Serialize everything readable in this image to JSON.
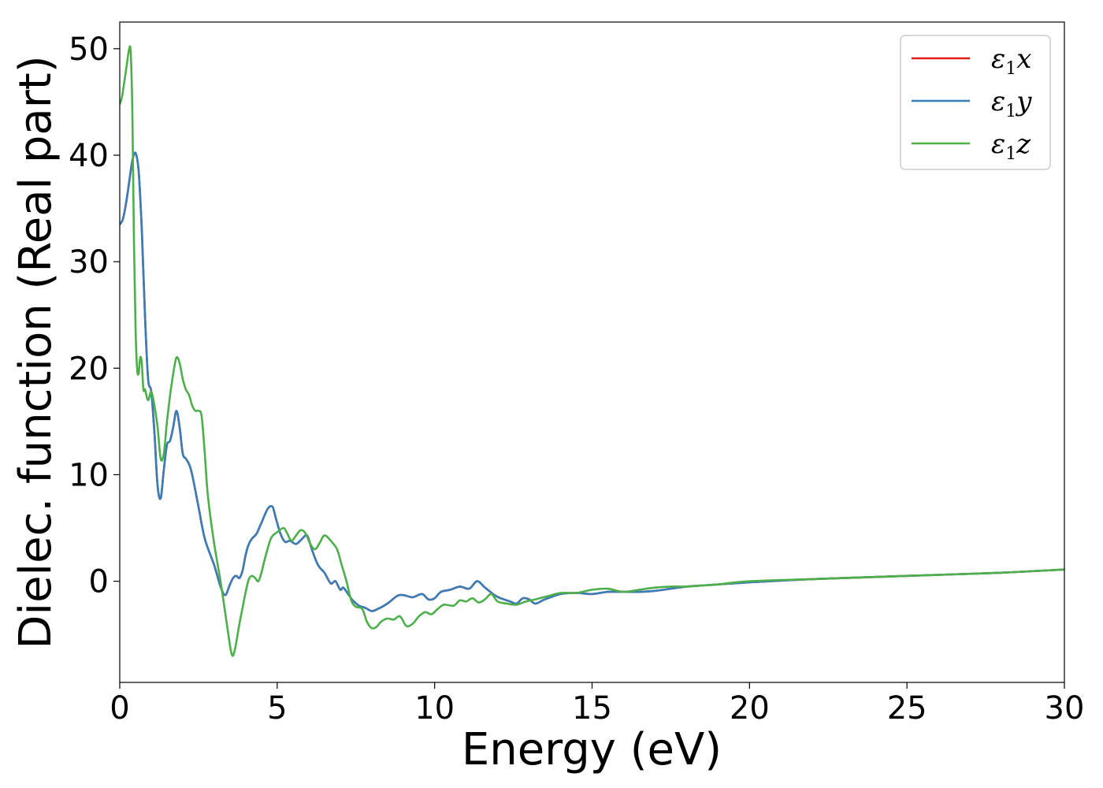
{
  "chart_data": {
    "type": "line",
    "xlabel": "Energy (eV)",
    "ylabel": "Dielec. function (Real part)",
    "xlim": [
      0,
      30
    ],
    "ylim": [
      -9.5,
      52.5
    ],
    "xticks": [
      0,
      5,
      10,
      15,
      20,
      25,
      30
    ],
    "yticks": [
      0,
      10,
      20,
      30,
      40,
      50
    ],
    "grid": false,
    "legend_position": "top-right",
    "series": [
      {
        "name": "ε1x",
        "symbol": "ε",
        "sub": "1",
        "tail": "x",
        "color": "#e41a1c",
        "x": [
          0,
          0.1,
          0.2,
          0.3,
          0.4,
          0.5,
          0.6,
          0.7,
          0.8,
          0.9,
          1.0,
          1.1,
          1.2,
          1.3,
          1.4,
          1.5,
          1.6,
          1.7,
          1.8,
          1.9,
          2.0,
          2.1,
          2.2,
          2.3,
          2.5,
          2.7,
          3.0,
          3.2,
          3.35,
          3.5,
          3.6,
          3.7,
          3.8,
          3.9,
          4.0,
          4.1,
          4.2,
          4.35,
          4.5,
          4.7,
          4.85,
          4.95,
          5.1,
          5.25,
          5.4,
          5.6,
          5.8,
          5.95,
          6.1,
          6.3,
          6.5,
          6.7,
          6.85,
          7.0,
          7.1,
          7.25,
          7.4,
          7.6,
          7.8,
          8.0,
          8.2,
          8.5,
          8.8,
          9.0,
          9.3,
          9.6,
          9.8,
          10.0,
          10.2,
          10.5,
          10.8,
          11.1,
          11.35,
          11.6,
          11.9,
          12.1,
          12.4,
          12.6,
          12.8,
          13.0,
          13.2,
          13.5,
          14.0,
          14.5,
          15.0,
          15.5,
          16.0,
          16.5,
          17.0,
          17.5,
          18.0,
          18.5,
          19.0,
          20.0,
          22.0,
          24.0,
          26.0,
          28.0,
          30.0
        ],
        "y": [
          33.5,
          34.0,
          35.5,
          37.5,
          39.5,
          40.2,
          38.5,
          33.0,
          25.0,
          19.0,
          17.8,
          14.0,
          9.0,
          7.8,
          10.5,
          12.8,
          13.2,
          14.5,
          16.0,
          14.5,
          12.0,
          11.5,
          11.0,
          10.0,
          7.0,
          4.0,
          1.5,
          -0.5,
          -1.3,
          -0.3,
          0.3,
          0.5,
          0.3,
          1.0,
          2.5,
          3.5,
          4.0,
          4.5,
          5.5,
          6.8,
          7.0,
          6.0,
          4.5,
          3.7,
          3.8,
          3.5,
          4.0,
          4.3,
          3.0,
          1.5,
          0.8,
          -0.2,
          0.0,
          -0.8,
          -0.6,
          -1.2,
          -1.8,
          -2.3,
          -2.5,
          -2.8,
          -2.6,
          -2.1,
          -1.4,
          -1.3,
          -1.5,
          -1.2,
          -1.7,
          -1.6,
          -1.0,
          -0.8,
          -0.5,
          -0.7,
          0.0,
          -0.6,
          -1.3,
          -1.6,
          -1.9,
          -2.1,
          -1.6,
          -1.7,
          -2.1,
          -1.7,
          -1.2,
          -1.1,
          -1.2,
          -1.0,
          -1.0,
          -1.0,
          -0.9,
          -0.7,
          -0.5,
          -0.4,
          -0.3,
          -0.1,
          0.2,
          0.4,
          0.6,
          0.8,
          1.1
        ]
      },
      {
        "name": "ε1y",
        "symbol": "ε",
        "sub": "1",
        "tail": "y",
        "color": "#377eb8",
        "x": [
          0,
          0.1,
          0.2,
          0.3,
          0.4,
          0.5,
          0.6,
          0.7,
          0.8,
          0.9,
          1.0,
          1.1,
          1.2,
          1.3,
          1.4,
          1.5,
          1.6,
          1.7,
          1.8,
          1.9,
          2.0,
          2.1,
          2.2,
          2.3,
          2.5,
          2.7,
          3.0,
          3.2,
          3.35,
          3.5,
          3.6,
          3.7,
          3.8,
          3.9,
          4.0,
          4.1,
          4.2,
          4.35,
          4.5,
          4.7,
          4.85,
          4.95,
          5.1,
          5.25,
          5.4,
          5.6,
          5.8,
          5.95,
          6.1,
          6.3,
          6.5,
          6.7,
          6.85,
          7.0,
          7.1,
          7.25,
          7.4,
          7.6,
          7.8,
          8.0,
          8.2,
          8.5,
          8.8,
          9.0,
          9.3,
          9.6,
          9.8,
          10.0,
          10.2,
          10.5,
          10.8,
          11.1,
          11.35,
          11.6,
          11.9,
          12.1,
          12.4,
          12.6,
          12.8,
          13.0,
          13.2,
          13.5,
          14.0,
          14.5,
          15.0,
          15.5,
          16.0,
          16.5,
          17.0,
          17.5,
          18.0,
          18.5,
          19.0,
          20.0,
          22.0,
          24.0,
          26.0,
          28.0,
          30.0
        ],
        "y": [
          33.5,
          34.0,
          35.5,
          37.5,
          39.5,
          40.2,
          38.5,
          33.0,
          25.0,
          19.0,
          17.8,
          14.0,
          9.0,
          7.8,
          10.5,
          12.8,
          13.2,
          14.5,
          16.0,
          14.5,
          12.0,
          11.5,
          11.0,
          10.0,
          7.0,
          4.0,
          1.5,
          -0.5,
          -1.3,
          -0.3,
          0.3,
          0.5,
          0.3,
          1.0,
          2.5,
          3.5,
          4.0,
          4.5,
          5.5,
          6.8,
          7.0,
          6.0,
          4.5,
          3.7,
          3.8,
          3.5,
          4.0,
          4.3,
          3.0,
          1.5,
          0.8,
          -0.2,
          0.0,
          -0.8,
          -0.6,
          -1.2,
          -1.8,
          -2.3,
          -2.5,
          -2.8,
          -2.6,
          -2.1,
          -1.4,
          -1.3,
          -1.5,
          -1.2,
          -1.7,
          -1.6,
          -1.0,
          -0.8,
          -0.5,
          -0.7,
          0.0,
          -0.6,
          -1.3,
          -1.6,
          -1.9,
          -2.1,
          -1.6,
          -1.7,
          -2.1,
          -1.7,
          -1.2,
          -1.1,
          -1.2,
          -1.0,
          -1.0,
          -1.0,
          -0.9,
          -0.7,
          -0.5,
          -0.4,
          -0.3,
          -0.1,
          0.2,
          0.4,
          0.6,
          0.8,
          1.1
        ]
      },
      {
        "name": "ε1z",
        "symbol": "ε",
        "sub": "1",
        "tail": "z",
        "color": "#4daf4a",
        "x": [
          0,
          0.05,
          0.1,
          0.2,
          0.3,
          0.35,
          0.4,
          0.45,
          0.5,
          0.55,
          0.6,
          0.65,
          0.7,
          0.75,
          0.8,
          0.9,
          1.0,
          1.1,
          1.2,
          1.3,
          1.4,
          1.5,
          1.6,
          1.7,
          1.8,
          1.9,
          2.0,
          2.1,
          2.2,
          2.3,
          2.4,
          2.5,
          2.6,
          2.7,
          2.8,
          3.0,
          3.2,
          3.4,
          3.55,
          3.65,
          3.8,
          3.9,
          4.0,
          4.1,
          4.2,
          4.3,
          4.4,
          4.5,
          4.6,
          4.8,
          5.0,
          5.2,
          5.3,
          5.45,
          5.6,
          5.75,
          5.9,
          6.05,
          6.2,
          6.35,
          6.5,
          6.7,
          6.9,
          7.05,
          7.2,
          7.35,
          7.5,
          7.7,
          7.85,
          8.0,
          8.15,
          8.3,
          8.5,
          8.7,
          8.9,
          9.1,
          9.3,
          9.5,
          9.7,
          9.9,
          10.1,
          10.3,
          10.6,
          10.8,
          11.0,
          11.2,
          11.4,
          11.6,
          11.8,
          12.0,
          12.3,
          12.6,
          12.9,
          13.2,
          13.6,
          14.0,
          14.5,
          15.0,
          15.5,
          16.0,
          16.5,
          17.0,
          17.5,
          18.0,
          18.5,
          19.0,
          20.0,
          22.0,
          24.0,
          26.0,
          28.0,
          30.0
        ],
        "y": [
          44.8,
          45.2,
          46.0,
          48.0,
          50.0,
          49.5,
          44.0,
          32.0,
          24.0,
          20.0,
          19.5,
          21.0,
          20.5,
          18.0,
          18.0,
          17.0,
          17.8,
          16.5,
          14.5,
          11.5,
          12.0,
          15.0,
          17.5,
          19.5,
          21.0,
          20.5,
          19.0,
          18.0,
          17.5,
          16.5,
          16.0,
          16.0,
          15.5,
          12.0,
          8.0,
          3.5,
          0.0,
          -4.0,
          -6.8,
          -6.5,
          -4.0,
          -2.5,
          -1.0,
          0.2,
          0.5,
          0.3,
          0.0,
          0.8,
          2.0,
          4.0,
          4.6,
          5.0,
          4.6,
          3.8,
          4.3,
          4.8,
          4.5,
          3.5,
          3.0,
          3.6,
          4.3,
          3.8,
          3.0,
          1.5,
          0.0,
          -1.8,
          -2.4,
          -2.6,
          -3.8,
          -4.4,
          -4.3,
          -3.8,
          -3.5,
          -3.6,
          -3.3,
          -4.2,
          -4.0,
          -3.3,
          -2.9,
          -3.1,
          -2.6,
          -2.2,
          -2.3,
          -1.8,
          -1.9,
          -1.6,
          -2.0,
          -1.7,
          -1.2,
          -1.9,
          -2.1,
          -2.2,
          -1.9,
          -1.7,
          -1.4,
          -1.1,
          -1.1,
          -0.8,
          -0.7,
          -1.0,
          -0.8,
          -0.6,
          -0.5,
          -0.5,
          -0.4,
          -0.3,
          0.0,
          0.2,
          0.4,
          0.6,
          0.8,
          1.1
        ]
      }
    ]
  }
}
